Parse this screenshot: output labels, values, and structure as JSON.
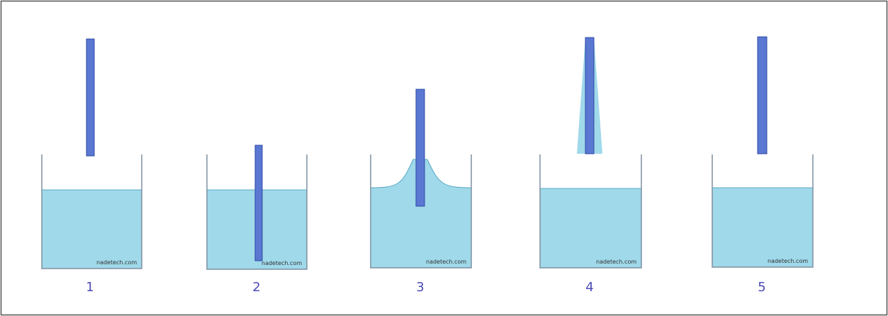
{
  "steps": [
    {
      "label": "1",
      "watermark": "nadetech.com"
    },
    {
      "label": "2",
      "watermark": "nadetech.com"
    },
    {
      "label": "3",
      "watermark": "nadetech.com"
    },
    {
      "label": "4",
      "watermark": "nadetech.com"
    },
    {
      "label": "5",
      "watermark": "nadetech.com"
    }
  ]
}
